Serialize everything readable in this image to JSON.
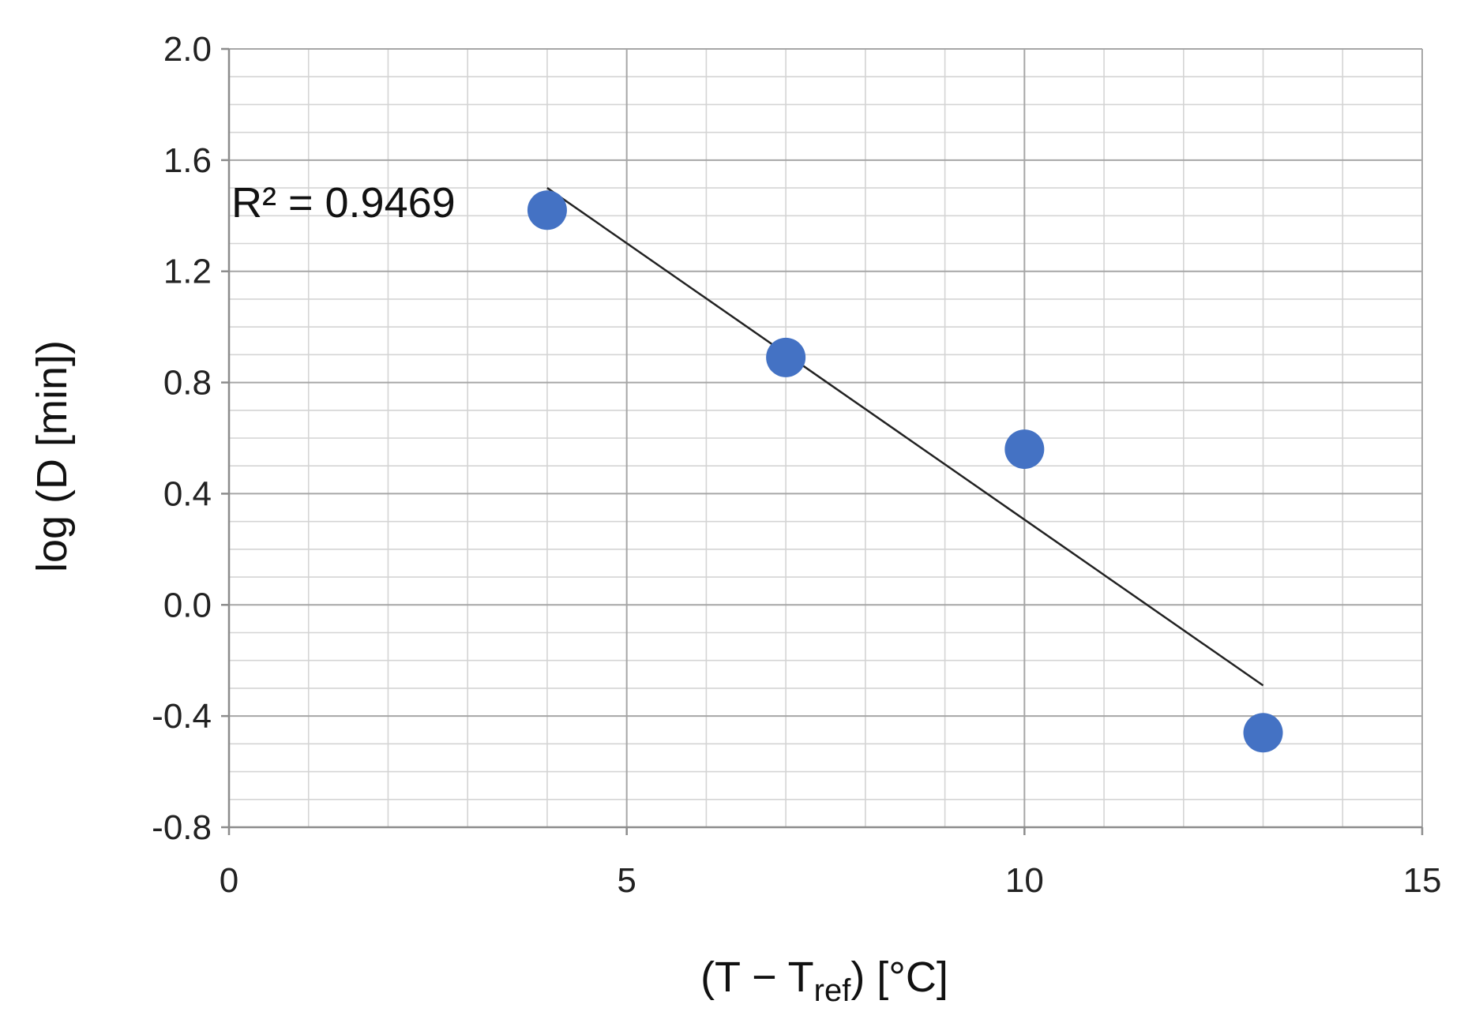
{
  "chart_data": {
    "type": "scatter",
    "title": "",
    "xlabel": "(T − T",
    "xlabel_sub": "ref",
    "xlabel_tail": ") [°C]",
    "ylabel": "log (D [min])",
    "xlim": [
      0,
      15
    ],
    "ylim": [
      -0.8,
      2.0
    ],
    "xticks": [
      0,
      5,
      10,
      15
    ],
    "xtick_labels": [
      "0",
      "5",
      "10",
      "15"
    ],
    "yticks": [
      -0.8,
      -0.4,
      0.0,
      0.4,
      0.8,
      1.2,
      1.6,
      2.0
    ],
    "ytick_labels": [
      "-0.8",
      "-0.4",
      "0.0",
      "0.4",
      "0.8",
      "1.2",
      "1.6",
      "2.0"
    ],
    "grid": true,
    "legend": "none",
    "series": [
      {
        "x": [
          4,
          7,
          10,
          13
        ],
        "y": [
          1.42,
          0.89,
          0.56,
          -0.46
        ],
        "color": "#4472C4"
      }
    ],
    "trendline": {
      "type": "linear",
      "x": [
        4,
        13
      ],
      "y": [
        1.5,
        -0.29
      ],
      "color": "#222222"
    },
    "annotations": [
      {
        "text": "R² = 0.9469"
      }
    ]
  }
}
